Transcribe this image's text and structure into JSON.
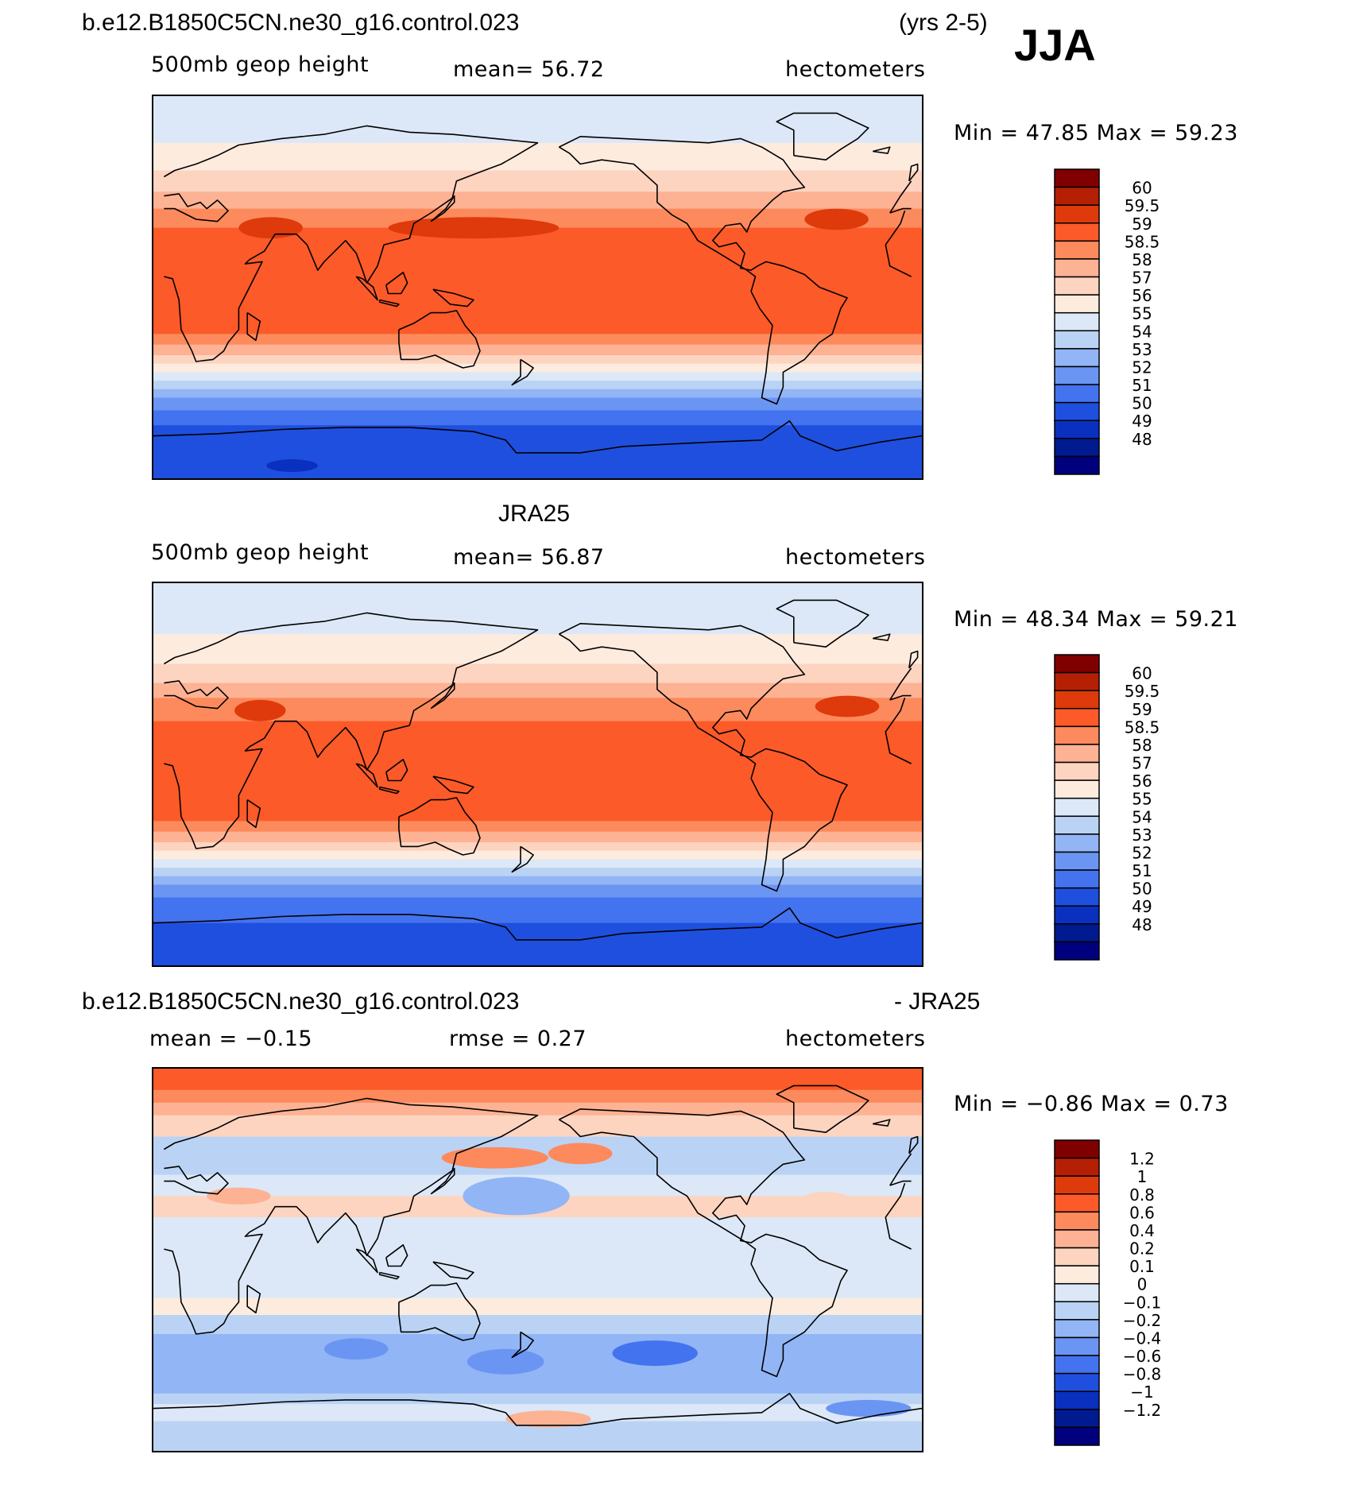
{
  "header": {
    "case": "b.e12.B1850C5CN.ne30_g16.control.023",
    "years": "(yrs 2-5)",
    "season": "JJA"
  },
  "chart_data": [
    {
      "type": "heatmap",
      "panel": "model",
      "variable": "500mb geop height",
      "mean_text": "mean=   56.72",
      "units": "hectometers",
      "min": 47.85,
      "max": 59.23,
      "minmax_text": "Min =   47.85  Max =   59.23",
      "levels": [
        "60",
        "59.5",
        "59",
        "58.5",
        "58",
        "57",
        "56",
        "55",
        "54",
        "53",
        "52",
        "51",
        "50",
        "49",
        "48"
      ],
      "colors": [
        "#800000",
        "#b52005",
        "#de3a0c",
        "#fc5a28",
        "#fd8a5c",
        "#fdb294",
        "#fdd4c0",
        "#fdebde",
        "#dce8f7",
        "#bad3f5",
        "#92b5f5",
        "#6b95f3",
        "#4473ef",
        "#1f4fde",
        "#0a30bf",
        "#001a90",
        "#00007f"
      ],
      "lat_bands": [
        {
          "lat": 80,
          "level": 54
        },
        {
          "lat": 68,
          "level": 55
        },
        {
          "lat": 55,
          "level": 56
        },
        {
          "lat": 45,
          "level": 57
        },
        {
          "lat": 37,
          "level": 58
        },
        {
          "lat": 28,
          "level": 58.5
        },
        {
          "lat": -10,
          "level": 58.5
        },
        {
          "lat": -22,
          "level": 58
        },
        {
          "lat": -27,
          "level": 57
        },
        {
          "lat": -32,
          "level": 56
        },
        {
          "lat": -36,
          "level": 55
        },
        {
          "lat": -40,
          "level": 54
        },
        {
          "lat": -44,
          "level": 53
        },
        {
          "lat": -48,
          "level": 52
        },
        {
          "lat": -52,
          "level": 51
        },
        {
          "lat": -58,
          "level": 50
        },
        {
          "lat": -65,
          "level": 49
        },
        {
          "lat": -90,
          "level": 48
        }
      ],
      "features": [
        {
          "lon": 55,
          "lat": 28,
          "rlon": 15,
          "rlat": 5,
          "level": 59
        },
        {
          "lon": 320,
          "lat": 32,
          "rlon": 15,
          "rlat": 5,
          "level": 59
        },
        {
          "lon": 150,
          "lat": 28,
          "rlon": 40,
          "rlat": 5,
          "level": 59
        },
        {
          "lon": 65,
          "lat": -84,
          "rlon": 12,
          "rlat": 3,
          "level": 48
        }
      ]
    },
    {
      "type": "heatmap",
      "panel": "obs",
      "title": "JRA25",
      "variable": "500mb geop height",
      "mean_text": "mean=   56.87",
      "units": "hectometers",
      "min": 48.34,
      "max": 59.21,
      "minmax_text": "Min =   48.34  Max =   59.21",
      "levels": [
        "60",
        "59.5",
        "59",
        "58.5",
        "58",
        "57",
        "56",
        "55",
        "54",
        "53",
        "52",
        "51",
        "50",
        "49",
        "48"
      ],
      "colors": [
        "#800000",
        "#b52005",
        "#de3a0c",
        "#fc5a28",
        "#fd8a5c",
        "#fdb294",
        "#fdd4c0",
        "#fdebde",
        "#dce8f7",
        "#bad3f5",
        "#92b5f5",
        "#6b95f3",
        "#4473ef",
        "#1f4fde",
        "#0a30bf",
        "#001a90",
        "#00007f"
      ],
      "lat_bands": [
        {
          "lat": 78,
          "level": 54
        },
        {
          "lat": 66,
          "level": 55
        },
        {
          "lat": 52,
          "level": 56
        },
        {
          "lat": 43,
          "level": 57
        },
        {
          "lat": 36,
          "level": 58
        },
        {
          "lat": 25,
          "level": 58.5
        },
        {
          "lat": -14,
          "level": 58.5
        },
        {
          "lat": -22,
          "level": 58
        },
        {
          "lat": -27,
          "level": 57
        },
        {
          "lat": -32,
          "level": 56
        },
        {
          "lat": -36,
          "level": 55
        },
        {
          "lat": -40,
          "level": 54
        },
        {
          "lat": -44,
          "level": 53
        },
        {
          "lat": -48,
          "level": 52
        },
        {
          "lat": -52,
          "level": 51
        },
        {
          "lat": -58,
          "level": 50
        },
        {
          "lat": -70,
          "level": 49
        },
        {
          "lat": -90,
          "level": 49
        }
      ],
      "features": [
        {
          "lon": 50,
          "lat": 30,
          "rlon": 12,
          "rlat": 5,
          "level": 59
        },
        {
          "lon": 325,
          "lat": 32,
          "rlon": 15,
          "rlat": 5,
          "level": 59
        }
      ]
    },
    {
      "type": "heatmap",
      "panel": "difference",
      "title_left": "b.e12.B1850C5CN.ne30_g16.control.023",
      "title_right": "- JRA25",
      "mean_text": "mean =   −0.15",
      "rmse_text": "rmse =    0.27",
      "units": "hectometers",
      "min": -0.86,
      "max": 0.73,
      "minmax_text": "Min =   −0.86  Max =    0.73",
      "levels": [
        "1.2",
        "1",
        "0.8",
        "0.6",
        "0.4",
        "0.2",
        "0.1",
        "0",
        "−0.1",
        "−0.2",
        "−0.4",
        "−0.6",
        "−0.8",
        "−1",
        "−1.2"
      ],
      "colors": [
        "#800000",
        "#b52005",
        "#de3a0c",
        "#fc5a28",
        "#fd8a5c",
        "#fdb294",
        "#fdd4c0",
        "#fdebde",
        "#dce8f7",
        "#bad3f5",
        "#92b5f5",
        "#6b95f3",
        "#4473ef",
        "#1f4fde",
        "#0a30bf",
        "#001a90",
        "#00007f"
      ],
      "lat_bands": [
        {
          "lat": 85,
          "level": 0.6
        },
        {
          "lat": 80,
          "level": 0.4
        },
        {
          "lat": 74,
          "level": 0.2
        },
        {
          "lat": 68,
          "level": 0.1
        },
        {
          "lat": 58,
          "level": -0.2
        },
        {
          "lat": 40,
          "level": -0.1
        },
        {
          "lat": 30,
          "level": 0.1
        },
        {
          "lat": 20,
          "level": -0.1
        },
        {
          "lat": -18,
          "level": 0
        },
        {
          "lat": -26,
          "level": -0.2
        },
        {
          "lat": -35,
          "level": -0.4
        },
        {
          "lat": -58,
          "level": -0.4
        },
        {
          "lat": -63,
          "level": -0.2
        },
        {
          "lat": -68,
          "level": -0.1
        },
        {
          "lat": -76,
          "level": -0.2
        },
        {
          "lat": -90,
          "level": -0.4
        }
      ],
      "features": [
        {
          "lon": 160,
          "lat": 48,
          "rlon": 25,
          "rlat": 5,
          "level": 0.4
        },
        {
          "lon": 200,
          "lat": 50,
          "rlon": 15,
          "rlat": 5,
          "level": 0.4
        },
        {
          "lon": 170,
          "lat": 30,
          "rlon": 25,
          "rlat": 9,
          "level": -0.4
        },
        {
          "lon": 235,
          "lat": -44,
          "rlon": 20,
          "rlat": 6,
          "level": -0.8
        },
        {
          "lon": 165,
          "lat": -48,
          "rlon": 18,
          "rlat": 6,
          "level": -0.6
        },
        {
          "lon": 95,
          "lat": -42,
          "rlon": 15,
          "rlat": 5,
          "level": -0.6
        },
        {
          "lon": 185,
          "lat": -75,
          "rlon": 20,
          "rlat": 4,
          "level": 0.2
        },
        {
          "lon": 335,
          "lat": -70,
          "rlon": 20,
          "rlat": 4,
          "level": -0.6
        },
        {
          "lon": 40,
          "lat": 30,
          "rlon": 15,
          "rlat": 4,
          "level": 0.2
        },
        {
          "lon": 315,
          "lat": 28,
          "rlon": 12,
          "rlat": 4,
          "level": 0.1
        }
      ]
    }
  ]
}
